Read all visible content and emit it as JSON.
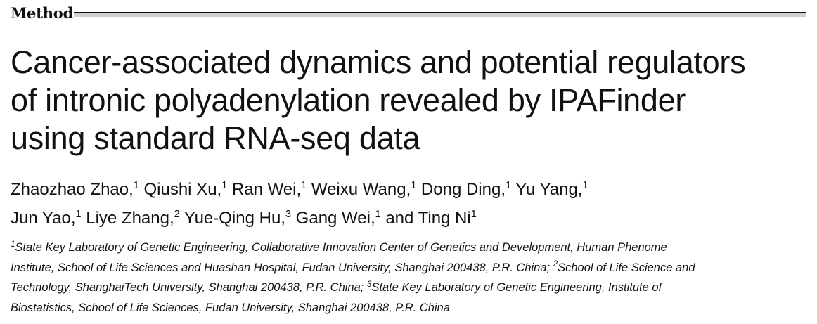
{
  "section": {
    "label": "Method"
  },
  "title": {
    "lines": [
      "Cancer-associated dynamics and potential regulators",
      "of intronic polyadenylation revealed by IPAFinder",
      "using standard RNA-seq data"
    ]
  },
  "authors": [
    {
      "name": "Zhaozhao Zhao,",
      "aff": "1"
    },
    {
      "name": "Qiushi Xu,",
      "aff": "1"
    },
    {
      "name": "Ran Wei,",
      "aff": "1"
    },
    {
      "name": "Weixu Wang,",
      "aff": "1"
    },
    {
      "name": "Dong Ding,",
      "aff": "1"
    },
    {
      "name": "Yu Yang,",
      "aff": "1"
    },
    {
      "name": "Jun Yao,",
      "aff": "1"
    },
    {
      "name": "Liye Zhang,",
      "aff": "2"
    },
    {
      "name": "Yue-Qing Hu,",
      "aff": "3"
    },
    {
      "name": "Gang Wei,",
      "aff": "1"
    },
    {
      "name": "and Ting Ni",
      "aff": "1"
    }
  ],
  "affiliations": {
    "lines": [
      [
        {
          "sup": "1",
          "text": "State Key Laboratory of Genetic Engineering, Collaborative Innovation Center of Genetics and Development, Human Phenome"
        }
      ],
      [
        {
          "sup": "",
          "text": "Institute, School of Life Sciences and Huashan Hospital, Fudan University, Shanghai 200438, P.R. China; "
        },
        {
          "sup": "2",
          "text": "School of Life Science and"
        }
      ],
      [
        {
          "sup": "",
          "text": "Technology, ShanghaiTech University, Shanghai 200438, P.R. China; "
        },
        {
          "sup": "3",
          "text": "State Key Laboratory of Genetic Engineering, Institute of"
        }
      ],
      [
        {
          "sup": "",
          "text": "Biostatistics, School of Life Sciences, Fudan University, Shanghai 200438, P.R. China"
        }
      ]
    ]
  }
}
